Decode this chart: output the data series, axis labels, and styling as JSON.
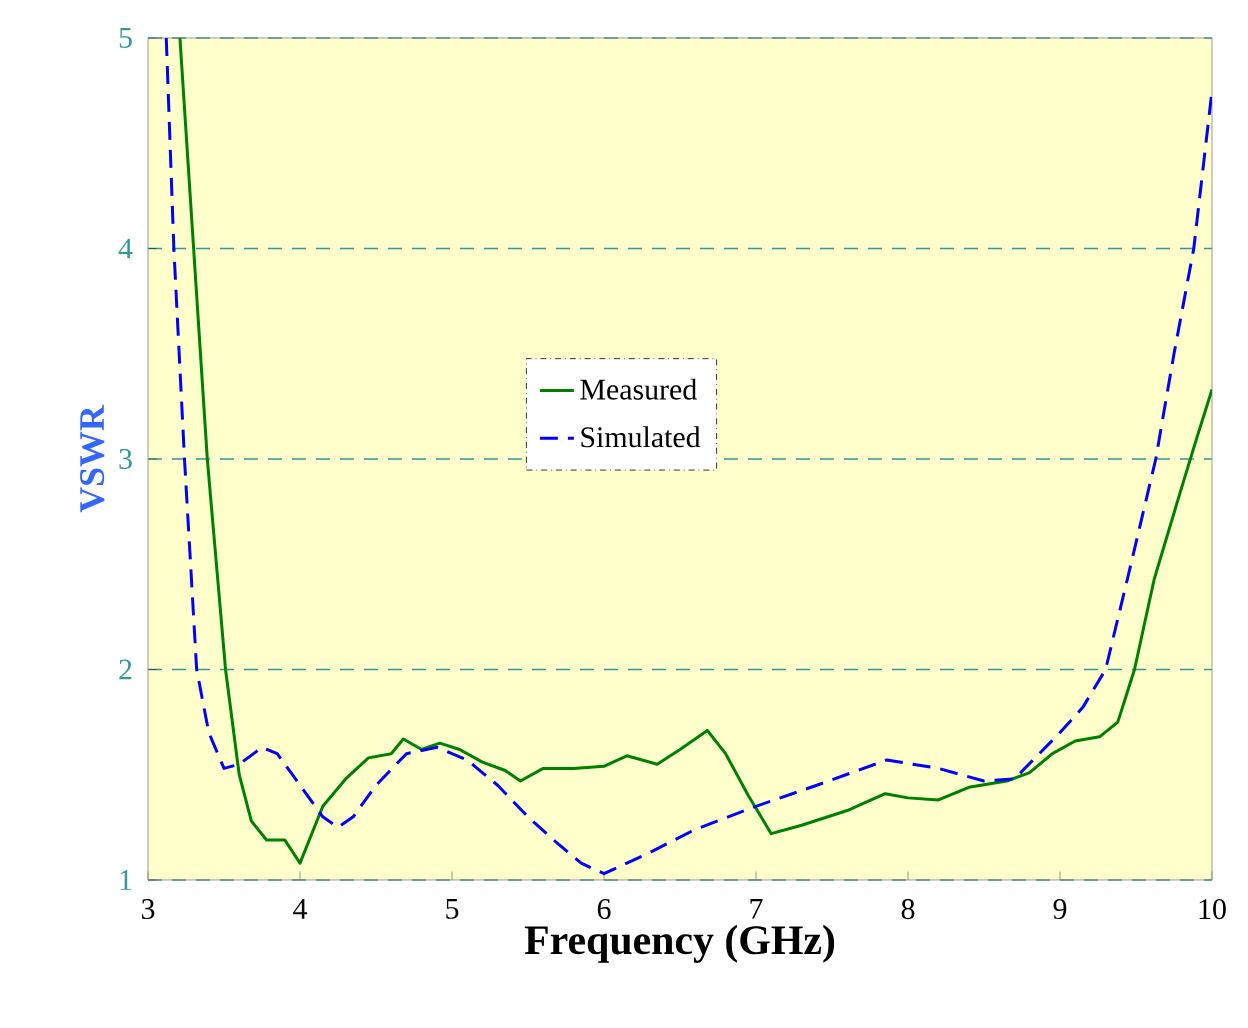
{
  "chart_data": {
    "type": "line",
    "xlabel": "Frequency (GHz)",
    "ylabel": "VSWR",
    "xlim": [
      3,
      10
    ],
    "ylim": [
      1,
      5
    ],
    "xticks": [
      3,
      4,
      5,
      6,
      7,
      8,
      9,
      10
    ],
    "yticks": [
      1,
      2,
      3,
      4,
      5
    ],
    "grid": "y",
    "legend": "center",
    "series": [
      {
        "name": "Measured",
        "color": "#008000",
        "line_style": "solid",
        "x": [
          3.21,
          3.3,
          3.39,
          3.51,
          3.6,
          3.68,
          3.78,
          3.9,
          4.0,
          4.15,
          4.3,
          4.45,
          4.6,
          4.68,
          4.8,
          4.92,
          5.05,
          5.2,
          5.35,
          5.45,
          5.6,
          5.8,
          6.0,
          6.15,
          6.35,
          6.5,
          6.68,
          6.8,
          6.95,
          7.1,
          7.3,
          7.6,
          7.85,
          8.0,
          8.2,
          8.4,
          8.65,
          8.8,
          8.95,
          9.1,
          9.26,
          9.38,
          9.49,
          9.62,
          9.79,
          9.9,
          10
        ],
        "values": [
          5,
          4,
          3,
          2,
          1.5,
          1.28,
          1.19,
          1.19,
          1.08,
          1.35,
          1.48,
          1.58,
          1.6,
          1.67,
          1.62,
          1.65,
          1.62,
          1.56,
          1.52,
          1.47,
          1.53,
          1.53,
          1.54,
          1.59,
          1.55,
          1.62,
          1.71,
          1.6,
          1.4,
          1.22,
          1.26,
          1.33,
          1.41,
          1.39,
          1.38,
          1.44,
          1.47,
          1.51,
          1.6,
          1.66,
          1.68,
          1.75,
          2.0,
          2.43,
          2.84,
          3.1,
          3.33
        ]
      },
      {
        "name": "Simulated",
        "color": "#0000ff",
        "line_style": "dashed",
        "x": [
          3.12,
          3.17,
          3.24,
          3.32,
          3.4,
          3.5,
          3.6,
          3.75,
          3.85,
          4.0,
          4.15,
          4.25,
          4.35,
          4.5,
          4.7,
          4.9,
          5.1,
          5.3,
          5.5,
          5.7,
          5.85,
          6.0,
          6.3,
          6.6,
          7.0,
          7.4,
          7.86,
          8.2,
          8.5,
          8.7,
          9.0,
          9.15,
          9.3,
          9.45,
          9.63,
          9.75,
          9.88,
          10
        ],
        "values": [
          5,
          4,
          3,
          2,
          1.7,
          1.53,
          1.55,
          1.63,
          1.6,
          1.45,
          1.3,
          1.25,
          1.3,
          1.45,
          1.6,
          1.63,
          1.57,
          1.45,
          1.3,
          1.17,
          1.08,
          1.03,
          1.13,
          1.24,
          1.35,
          1.45,
          1.57,
          1.53,
          1.47,
          1.48,
          1.7,
          1.82,
          2.0,
          2.45,
          3.0,
          3.5,
          4.0,
          4.75
        ]
      }
    ]
  }
}
